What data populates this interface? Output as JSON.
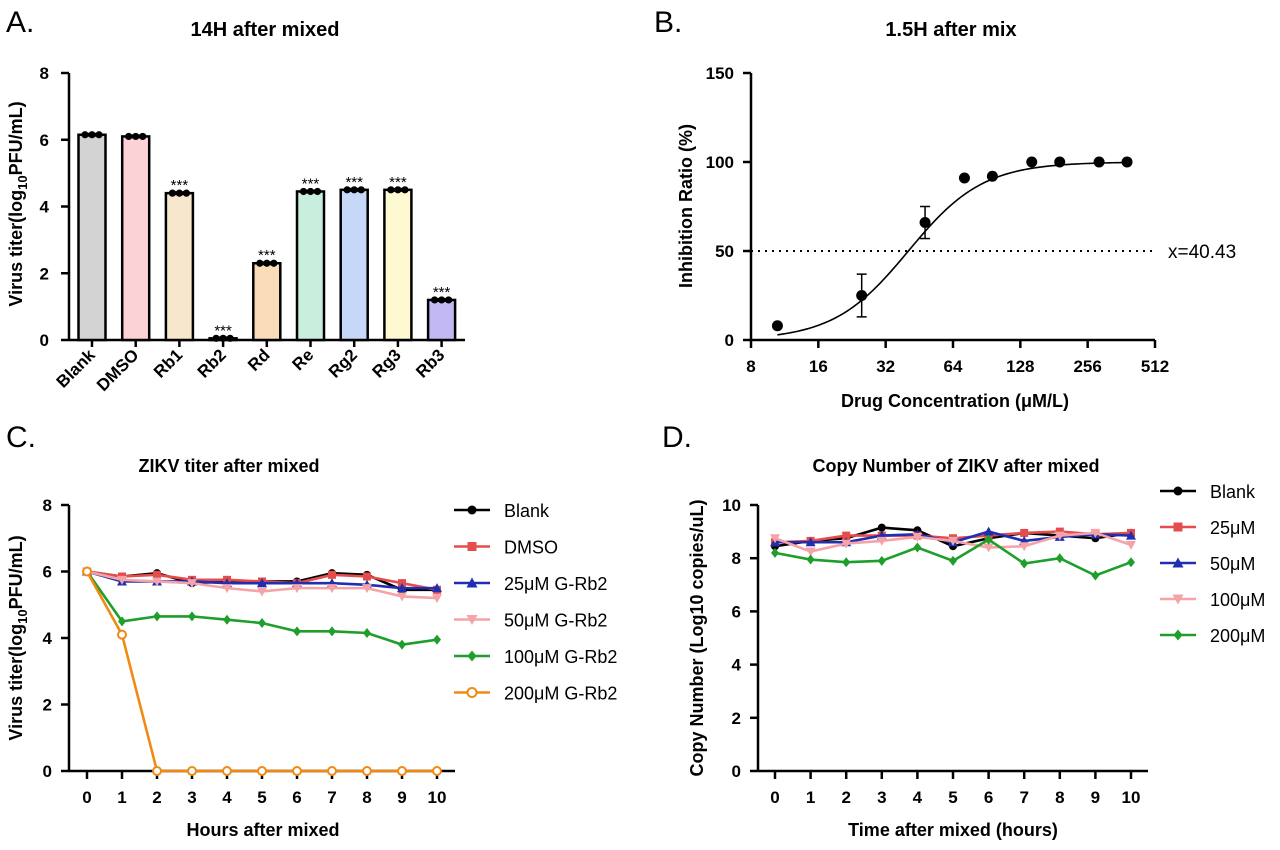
{
  "colors": {
    "blank": "#000000",
    "dmso": "#e54c4c",
    "p25": "#1f2fb0",
    "p50": "#f4a3a8",
    "p100": "#1e9e2b",
    "p200": "#f08a14"
  },
  "chart_data": [
    {
      "id": "A",
      "panel_label": "A.",
      "type": "bar",
      "title": "14H after mixed",
      "xlabel": "",
      "ylabel_prefix": "Virus titer(log",
      "ylabel_sub": "10",
      "ylabel_suffix": "PFU/mL)",
      "ylim": [
        0,
        8
      ],
      "yticks": [
        0,
        2,
        4,
        6,
        8
      ],
      "categories": [
        "Blank",
        "DMSO",
        "Rb1",
        "Rb2",
        "Rd",
        "Re",
        "Rg2",
        "Rg3",
        "Rb3"
      ],
      "values": [
        6.15,
        6.1,
        4.4,
        0.05,
        2.3,
        4.45,
        4.5,
        4.5,
        1.2
      ],
      "bar_colors": [
        "#d3d3d3",
        "#fbd3d6",
        "#f6e7cd",
        "#dcd9f5",
        "#fbdcb8",
        "#c9eedd",
        "#c6d7f7",
        "#fdf9d0",
        "#c2b9f3"
      ],
      "significance": [
        "",
        "",
        "***",
        "***",
        "***",
        "***",
        "***",
        "***",
        "***"
      ]
    },
    {
      "id": "B",
      "panel_label": "B.",
      "type": "scatter",
      "title": "1.5H after mix",
      "xlabel": "Drug Concentration (μM/L)",
      "ylabel": "Inhibition Ratio (%)",
      "xscale": "log2",
      "xlim": [
        8,
        512
      ],
      "xticks": [
        8,
        16,
        32,
        64,
        128,
        256,
        512
      ],
      "ylim": [
        0,
        150
      ],
      "yticks": [
        0,
        50,
        100,
        150
      ],
      "points": [
        {
          "x": 10.5,
          "y": 8
        },
        {
          "x": 25,
          "y": 25,
          "err": 12
        },
        {
          "x": 48,
          "y": 66,
          "err": 9
        },
        {
          "x": 72,
          "y": 91
        },
        {
          "x": 96,
          "y": 92
        },
        {
          "x": 144,
          "y": 100
        },
        {
          "x": 192,
          "y": 100
        },
        {
          "x": 288,
          "y": 100
        },
        {
          "x": 384,
          "y": 100
        }
      ],
      "fit": {
        "type": "sigmoid",
        "ic50": 40.43,
        "hill": 2.6,
        "bottom": 0,
        "top": 100
      },
      "reference_line_y": 50,
      "annotation": "x=40.43"
    },
    {
      "id": "C",
      "panel_label": "C.",
      "type": "line",
      "title": "ZIKV titer after mixed",
      "xlabel": "Hours after mixed",
      "ylabel_prefix": "Virus titer(log",
      "ylabel_sub": "10",
      "ylabel_suffix": "PFU/mL)",
      "x": [
        0,
        1,
        2,
        3,
        4,
        5,
        6,
        7,
        8,
        9,
        10
      ],
      "xlim": [
        0,
        10
      ],
      "ylim": [
        0,
        8
      ],
      "yticks": [
        0,
        2,
        4,
        6,
        8
      ],
      "series": [
        {
          "name": "Blank",
          "color": "#000000",
          "marker": "circle",
          "values": [
            6.0,
            5.85,
            5.95,
            5.65,
            5.7,
            5.7,
            5.7,
            5.95,
            5.9,
            5.45,
            5.45
          ]
        },
        {
          "name": "DMSO",
          "color": "#e54c4c",
          "marker": "square",
          "values": [
            6.0,
            5.85,
            5.9,
            5.75,
            5.75,
            5.7,
            5.65,
            5.9,
            5.85,
            5.65,
            5.45
          ]
        },
        {
          "name": "25μM G-Rb2",
          "color": "#1f2fb0",
          "marker": "triangle",
          "values": [
            6.0,
            5.7,
            5.7,
            5.7,
            5.65,
            5.65,
            5.65,
            5.65,
            5.6,
            5.5,
            5.5
          ]
        },
        {
          "name": "50μM G-Rb2",
          "color": "#f4a3a8",
          "marker": "triangle-down",
          "values": [
            6.0,
            5.75,
            5.7,
            5.65,
            5.5,
            5.4,
            5.5,
            5.5,
            5.5,
            5.25,
            5.2
          ]
        },
        {
          "name": "100μM G-Rb2",
          "color": "#1e9e2b",
          "marker": "diamond",
          "values": [
            6.0,
            4.5,
            4.65,
            4.65,
            4.55,
            4.45,
            4.2,
            4.2,
            4.15,
            3.8,
            3.95
          ]
        },
        {
          "name": "200μM G-Rb2",
          "color": "#f08a14",
          "marker": "open-circle",
          "values": [
            6.0,
            4.1,
            0,
            0,
            0,
            0,
            0,
            0,
            0,
            0,
            0
          ]
        }
      ]
    },
    {
      "id": "D",
      "panel_label": "D.",
      "type": "line",
      "title": "Copy Number of ZIKV after mixed",
      "xlabel": "Time after mixed (hours)",
      "ylabel": "Copy Number (Log10 copies/uL)",
      "x": [
        0,
        1,
        2,
        3,
        4,
        5,
        6,
        7,
        8,
        9,
        10
      ],
      "xlim": [
        0,
        10
      ],
      "ylim": [
        0,
        10
      ],
      "yticks": [
        0,
        2,
        4,
        6,
        8,
        10
      ],
      "series": [
        {
          "name": "Blank",
          "color": "#000000",
          "marker": "circle",
          "values": [
            8.45,
            8.65,
            8.75,
            9.15,
            9.05,
            8.45,
            8.75,
            8.95,
            8.85,
            8.75,
            8.95
          ]
        },
        {
          "name": "25μM",
          "color": "#e54c4c",
          "marker": "square",
          "values": [
            8.6,
            8.65,
            8.85,
            8.85,
            8.85,
            8.75,
            8.85,
            8.95,
            9.0,
            8.9,
            8.95
          ]
        },
        {
          "name": "50μM",
          "color": "#1f2fb0",
          "marker": "triangle",
          "values": [
            8.6,
            8.6,
            8.6,
            8.85,
            8.9,
            8.6,
            9.0,
            8.65,
            8.8,
            8.9,
            8.85
          ]
        },
        {
          "name": "100μM",
          "color": "#f4a3a8",
          "marker": "triangle-down",
          "values": [
            8.75,
            8.25,
            8.55,
            8.65,
            8.8,
            8.65,
            8.4,
            8.45,
            8.85,
            8.95,
            8.5
          ]
        },
        {
          "name": "200μM",
          "color": "#1e9e2b",
          "marker": "diamond",
          "values": [
            8.2,
            7.95,
            7.85,
            7.9,
            8.4,
            7.9,
            8.7,
            7.8,
            8.0,
            7.35,
            7.85
          ]
        }
      ]
    }
  ]
}
